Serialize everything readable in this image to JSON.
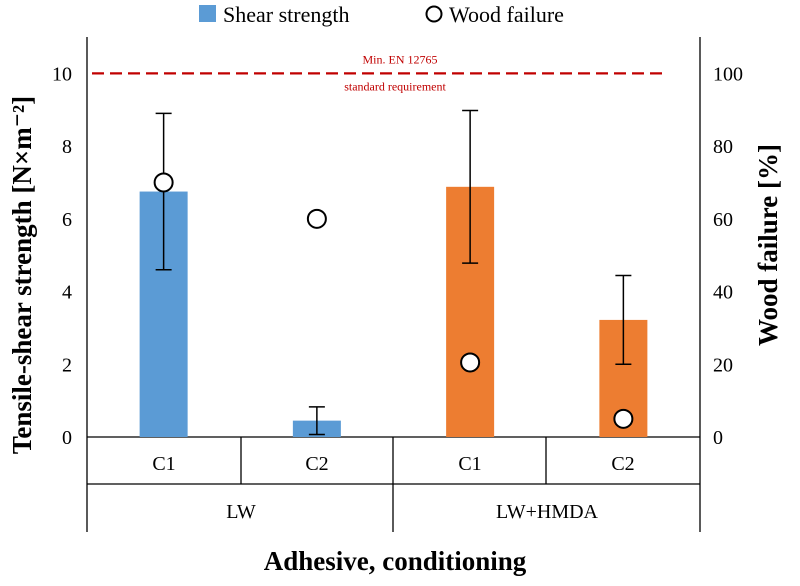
{
  "chart_data": {
    "type": "bar",
    "xlabel": "Adhesive, conditioning",
    "ylabel": "Tensile-shear strength [N×m⁻²]",
    "y2label": "Wood failure [%]",
    "ylim": [
      0,
      11
    ],
    "y2lim": [
      0,
      110
    ],
    "yticks": [
      0,
      2,
      4,
      6,
      8,
      10
    ],
    "y2ticks": [
      0,
      20,
      40,
      60,
      80,
      100
    ],
    "categories": [
      "C1",
      "C2",
      "C1",
      "C2"
    ],
    "groups": [
      {
        "label": "LW",
        "categories": [
          "C1",
          "C2"
        ]
      },
      {
        "label": "LW+HMDA",
        "categories": [
          "C1",
          "C2"
        ]
      }
    ],
    "series": [
      {
        "name": "Shear strength",
        "axis": "left",
        "values": [
          6.75,
          0.45,
          6.88,
          3.22
        ],
        "errors": [
          2.15,
          0.38,
          2.1,
          1.22
        ],
        "colors": [
          "#5B9BD5",
          "#5B9BD5",
          "#ED7D31",
          "#ED7D31"
        ]
      },
      {
        "name": "Wood failure",
        "axis": "right",
        "type": "scatter",
        "values": [
          70,
          60,
          20.5,
          5
        ]
      }
    ],
    "reference_line": {
      "value": 10,
      "axis": "left",
      "label_top": "Min. EN 12765",
      "label_bottom": "standard requirement",
      "color": "#C00000"
    },
    "legend": {
      "position": "top",
      "entries": [
        "Shear strength",
        "Wood failure"
      ],
      "bar_color": "#5B9BD5"
    }
  }
}
